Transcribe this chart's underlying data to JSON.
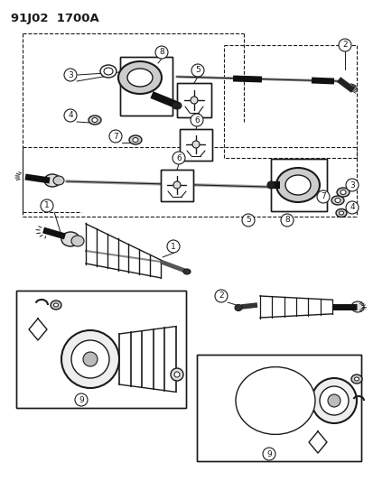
{
  "title": "91J02  1700A",
  "bg_color": "#ffffff",
  "line_color": "#1a1a1a",
  "title_fontsize": 9.5,
  "label_fontsize": 7
}
